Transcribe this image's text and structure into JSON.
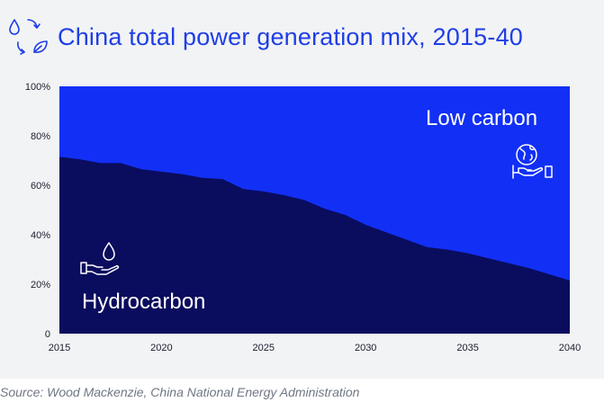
{
  "title": "China total power generation mix, 2015-40",
  "source": "Source: Wood Mackenzie, China National Energy Administration",
  "colors": {
    "low_carbon": "#1230f5",
    "hydrocarbon": "#0a0c5e",
    "title": "#1f3ee6",
    "background": "#f2f3f5"
  },
  "chart_data": {
    "type": "area",
    "title": "China total power generation mix, 2015-40",
    "xlabel": "",
    "ylabel": "",
    "xlim": [
      2015,
      2040
    ],
    "ylim": [
      0,
      100
    ],
    "x_ticks": [
      2015,
      2020,
      2025,
      2030,
      2035,
      2040
    ],
    "y_ticks": [
      0,
      20,
      40,
      60,
      80,
      100
    ],
    "y_tick_labels": [
      "0",
      "20%",
      "40%",
      "60%",
      "80%",
      "100%"
    ],
    "stacked": true,
    "x": [
      2015,
      2016,
      2017,
      2018,
      2019,
      2020,
      2021,
      2022,
      2023,
      2024,
      2025,
      2026,
      2027,
      2028,
      2029,
      2030,
      2031,
      2032,
      2033,
      2034,
      2035,
      2036,
      2037,
      2038,
      2039,
      2040
    ],
    "series": [
      {
        "name": "Hydrocarbon",
        "values": [
          71.5,
          70.5,
          69,
          69,
          66.5,
          65.5,
          64.5,
          63,
          62.5,
          58.5,
          57.5,
          56,
          54,
          50.5,
          48,
          44,
          41,
          38,
          35,
          34,
          32.5,
          30.5,
          28.5,
          26.5,
          24,
          21.5
        ]
      },
      {
        "name": "Low carbon",
        "values": [
          28.5,
          29.5,
          31,
          31,
          33.5,
          34.5,
          35.5,
          37,
          37.5,
          41.5,
          42.5,
          44,
          46,
          49.5,
          52,
          56,
          59,
          62,
          65,
          66,
          67.5,
          69.5,
          71.5,
          73.5,
          76,
          78.5
        ]
      }
    ],
    "annotations": [
      "Low carbon",
      "Hydrocarbon"
    ]
  }
}
